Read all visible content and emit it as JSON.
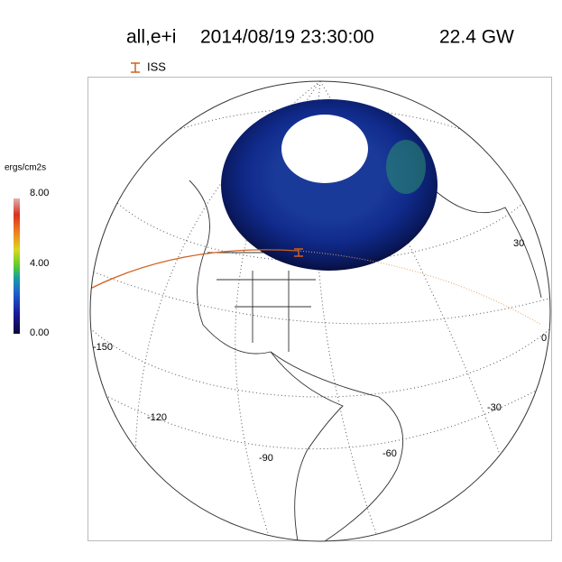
{
  "header": {
    "mode": "all,e+i",
    "datetime": "2014/08/19 23:30:00",
    "power": "22.4 GW"
  },
  "legend": {
    "label": "ISS"
  },
  "colorbar": {
    "unit": "ergs/cm2s",
    "ticks": [
      "8.00",
      "4.00",
      "0.00"
    ]
  },
  "map": {
    "longitude_labels": [
      "-150",
      "-120",
      "-90",
      "-60",
      "-30",
      "0",
      "30"
    ]
  }
}
